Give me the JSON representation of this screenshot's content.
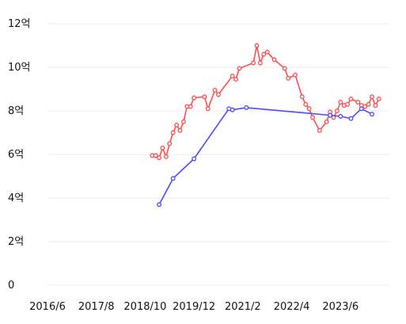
{
  "chart_data": {
    "type": "line",
    "title": "",
    "xlabel": "",
    "ylabel": "",
    "x_ticks": [
      "2016/6",
      "2017/8",
      "2018/10",
      "2019/12",
      "2021/2",
      "2022/4",
      "2023/6"
    ],
    "xlim": [
      "2016-06",
      "2024-08"
    ],
    "y_ticks": [
      0,
      2,
      4,
      6,
      8,
      10,
      12
    ],
    "y_tick_labels": [
      "0",
      "2억",
      "4억",
      "6억",
      "8억",
      "10억",
      "12억"
    ],
    "ylim": [
      0,
      12
    ],
    "grid": "horizontal",
    "legend": "none",
    "series": [
      {
        "color": "#ff4d4d",
        "points": [
          [
            "2018-12",
            5.95
          ],
          [
            "2019-01",
            5.95
          ],
          [
            "2019-02",
            5.85
          ],
          [
            "2019-03",
            6.3
          ],
          [
            "2019-04",
            5.9
          ],
          [
            "2019-05",
            6.5
          ],
          [
            "2019-06",
            7.0
          ],
          [
            "2019-07",
            7.35
          ],
          [
            "2019-08",
            7.1
          ],
          [
            "2019-09",
            7.5
          ],
          [
            "2019-10",
            8.2
          ],
          [
            "2019-11",
            8.2
          ],
          [
            "2019-12",
            8.6
          ],
          [
            "2020-03",
            8.65
          ],
          [
            "2020-04",
            8.1
          ],
          [
            "2020-06",
            8.95
          ],
          [
            "2020-07",
            8.75
          ],
          [
            "2020-11",
            9.6
          ],
          [
            "2020-12",
            9.45
          ],
          [
            "2021-01",
            9.95
          ],
          [
            "2021-05",
            10.2
          ],
          [
            "2021-06",
            11.0
          ],
          [
            "2021-07",
            10.2
          ],
          [
            "2021-08",
            10.6
          ],
          [
            "2021-09",
            10.7
          ],
          [
            "2021-11",
            10.35
          ],
          [
            "2022-02",
            9.95
          ],
          [
            "2022-03",
            9.5
          ],
          [
            "2022-05",
            9.65
          ],
          [
            "2022-07",
            8.65
          ],
          [
            "2022-08",
            8.3
          ],
          [
            "2022-09",
            8.1
          ],
          [
            "2022-10",
            7.7
          ],
          [
            "2022-12",
            7.1
          ],
          [
            "2023-02",
            7.5
          ],
          [
            "2023-03",
            7.95
          ],
          [
            "2023-04",
            7.7
          ],
          [
            "2023-05",
            8.0
          ],
          [
            "2023-06",
            8.4
          ],
          [
            "2023-07",
            8.25
          ],
          [
            "2023-08",
            8.3
          ],
          [
            "2023-09",
            8.55
          ],
          [
            "2023-11",
            8.4
          ],
          [
            "2023-12",
            8.25
          ],
          [
            "2024-01",
            8.2
          ],
          [
            "2024-02",
            8.3
          ],
          [
            "2024-03",
            8.65
          ],
          [
            "2024-04",
            8.25
          ],
          [
            "2024-05",
            8.55
          ]
        ]
      },
      {
        "color": "#4a4aff",
        "points": [
          [
            "2019-02",
            3.7
          ],
          [
            "2019-06",
            4.9
          ],
          [
            "2019-12",
            5.8
          ],
          [
            "2020-10",
            8.1
          ],
          [
            "2020-11",
            8.05
          ],
          [
            "2021-03",
            8.15
          ],
          [
            "2023-03",
            7.8
          ],
          [
            "2023-06",
            7.75
          ],
          [
            "2023-09",
            7.65
          ],
          [
            "2023-12",
            8.1
          ],
          [
            "2024-03",
            7.85
          ]
        ]
      }
    ]
  }
}
